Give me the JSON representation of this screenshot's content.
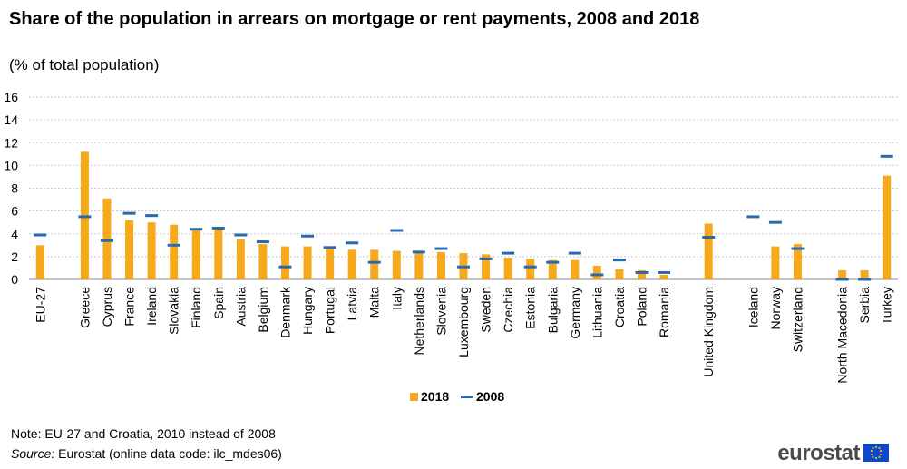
{
  "header": {
    "title": "Share of the population in arrears on mortgage or rent payments, 2008 and 2018",
    "subtitle": "(% of total population)"
  },
  "footer": {
    "note": "Note: EU-27 and Croatia, 2010 instead of 2008",
    "source_label": "Source:",
    "source_text": " Eurostat (online data code: ilc_mdes06)",
    "logo_text": "eurostat"
  },
  "colors": {
    "bar_2018": "#f7a91d",
    "marker_2008": "#2a68b0",
    "grid": "#c8c8c8",
    "flag": "#0e47cb"
  },
  "chart_data": {
    "type": "bar",
    "categories": [
      "EU-27",
      "Greece",
      "Cyprus",
      "France",
      "Ireland",
      "Slovakia",
      "Finland",
      "Spain",
      "Austria",
      "Belgium",
      "Denmark",
      "Hungary",
      "Portugal",
      "Latvia",
      "Malta",
      "Italy",
      "Netherlands",
      "Slovenia",
      "Luxembourg",
      "Sweden",
      "Czechia",
      "Estonia",
      "Bulgaria",
      "Germany",
      "Lithuania",
      "Croatia",
      "Poland",
      "Romania",
      "United Kingdom",
      "Iceland",
      "Norway",
      "Switzerland",
      "North Macedonia",
      "Serbia",
      "Turkey"
    ],
    "groups": [
      [
        0
      ],
      [
        1,
        2,
        3,
        4,
        5,
        6,
        7,
        8,
        9,
        10,
        11,
        12,
        13,
        14,
        15,
        16,
        17,
        18,
        19,
        20,
        21,
        22,
        23,
        24,
        25,
        26,
        27
      ],
      [
        28
      ],
      [
        29,
        30,
        31
      ],
      [
        32,
        33,
        34
      ]
    ],
    "series": [
      {
        "name": "2018",
        "kind": "bar",
        "values": [
          3.0,
          11.2,
          7.1,
          5.2,
          5.0,
          4.8,
          4.4,
          4.4,
          3.5,
          3.1,
          2.9,
          2.9,
          2.8,
          2.6,
          2.6,
          2.5,
          2.4,
          2.4,
          2.3,
          2.2,
          1.9,
          1.8,
          1.7,
          1.7,
          1.2,
          0.9,
          0.8,
          0.4,
          4.9,
          null,
          2.9,
          3.1,
          0.8,
          0.8,
          9.1
        ]
      },
      {
        "name": "2008",
        "kind": "marker",
        "values": [
          3.9,
          5.5,
          3.4,
          5.8,
          5.6,
          3.0,
          4.4,
          4.5,
          3.9,
          3.3,
          1.1,
          3.8,
          2.8,
          3.2,
          1.5,
          4.3,
          2.4,
          2.7,
          1.1,
          1.8,
          2.3,
          1.1,
          1.5,
          2.3,
          0.4,
          1.7,
          0.6,
          0.6,
          3.7,
          5.5,
          5.0,
          2.7,
          0.0,
          0.0,
          10.8
        ]
      }
    ],
    "yticks": [
      0,
      2,
      4,
      6,
      8,
      10,
      12,
      14,
      16
    ],
    "ylim": [
      0,
      16
    ],
    "grid": true,
    "legend": "bottom-center"
  }
}
